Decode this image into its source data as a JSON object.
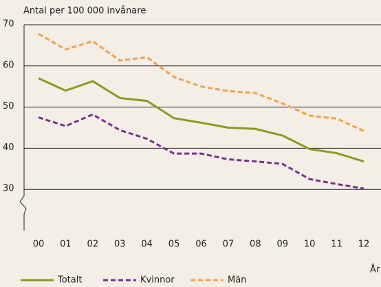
{
  "chart_data": {
    "type": "line",
    "y_axis_label": "Antal per 100 000 invånare",
    "x_axis_label": "År",
    "categories": [
      "00",
      "01",
      "02",
      "03",
      "04",
      "05",
      "06",
      "07",
      "08",
      "09",
      "10",
      "11",
      "12"
    ],
    "series": [
      {
        "name": "Totalt",
        "color": "#8c9a1f",
        "dash": "solid",
        "values": [
          57,
          54,
          56.3,
          52.2,
          51.5,
          47.3,
          46.2,
          45,
          44.7,
          43.1,
          39.8,
          38.8,
          36.8
        ]
      },
      {
        "name": "Kvinnor",
        "color": "#7a2f8f",
        "dash": "dashed",
        "values": [
          47.5,
          45.4,
          48.2,
          44.4,
          42.3,
          38.7,
          38.7,
          37.3,
          36.8,
          36.2,
          32.5,
          31.3,
          30.2
        ]
      },
      {
        "name": "Män",
        "color": "#f5a14b",
        "dash": "dashed",
        "values": [
          67.8,
          64,
          66,
          61.3,
          62.1,
          57.3,
          55,
          53.9,
          53.4,
          50.9,
          47.9,
          47.2,
          44.2
        ]
      }
    ],
    "ylim": [
      20,
      70
    ],
    "yticks": [
      30,
      40,
      50,
      60,
      70
    ],
    "grid": true
  }
}
